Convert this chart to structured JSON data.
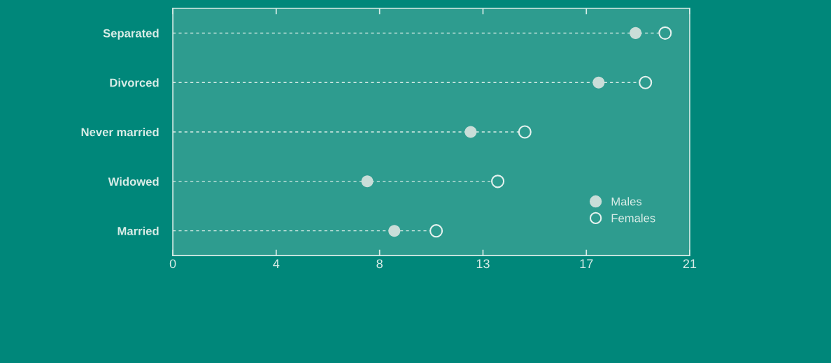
{
  "chart_data": {
    "type": "lollipop",
    "orientation": "horizontal",
    "categories": [
      "Separated",
      "Divorced",
      "Never married",
      "Widowed",
      "Married"
    ],
    "series": [
      {
        "name": "Males",
        "color": "#c9ddd8",
        "marker": "circle",
        "values": [
          18.8,
          17.3,
          12.1,
          7.9,
          9.0
        ]
      },
      {
        "name": "Females",
        "color": "#e6f2ef",
        "marker": "open circle",
        "values": [
          20.0,
          19.2,
          14.3,
          13.2,
          10.7
        ]
      }
    ],
    "xlim": [
      0,
      21
    ],
    "xticks": [
      0,
      {
        "value": 4.2,
        "label": "4"
      },
      {
        "value": 8.4,
        "label": "8"
      },
      {
        "value": 12.6,
        "label": "13"
      },
      {
        "value": 16.8,
        "label": "17"
      },
      21
    ],
    "line_style": "dashed",
    "grid": false,
    "legend": "bottom right"
  }
}
